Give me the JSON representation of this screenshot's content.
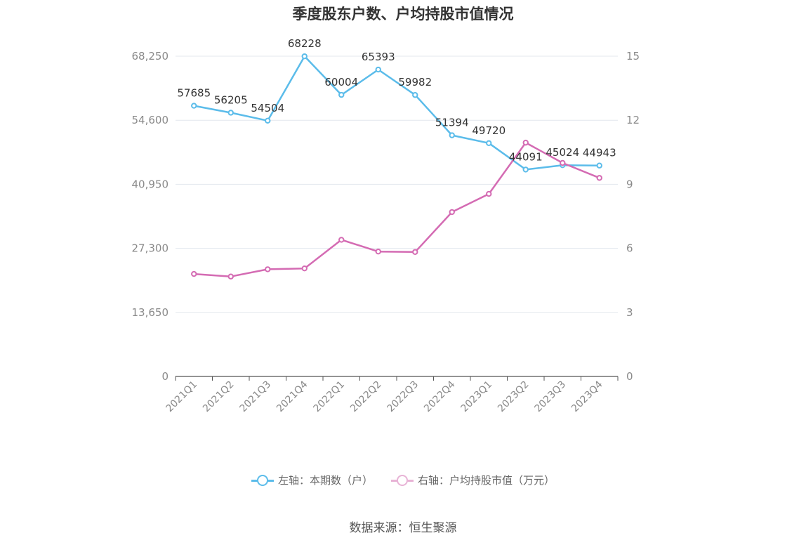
{
  "chart_data": {
    "type": "line",
    "title": "季度股东户数、户均持股市值情况",
    "categories": [
      "2021Q1",
      "2021Q2",
      "2021Q3",
      "2021Q4",
      "2022Q1",
      "2022Q2",
      "2022Q3",
      "2022Q4",
      "2023Q1",
      "2023Q2",
      "2023Q3",
      "2023Q4"
    ],
    "left_axis": {
      "ticks": [
        "0",
        "13,650",
        "27,300",
        "40,950",
        "54,600",
        "68,250"
      ],
      "min": 0,
      "max": 68250
    },
    "right_axis": {
      "ticks": [
        "0",
        "3",
        "6",
        "9",
        "12",
        "15"
      ],
      "min": 0,
      "max": 15
    },
    "series": [
      {
        "name": "左轴：本期数（户）",
        "axis": "left",
        "color": "#5bbcea",
        "values": [
          57685,
          56205,
          54504,
          68228,
          60004,
          65393,
          59982,
          51394,
          49720,
          44091,
          45024,
          44943
        ],
        "labels": [
          "57685",
          "56205",
          "54504",
          "68228",
          "60004",
          "65393",
          "59982",
          "51394",
          "49720",
          "44091",
          "45024",
          "44943"
        ]
      },
      {
        "name": "右轴：户均持股市值（万元）",
        "axis": "right",
        "color": "#d46bb3",
        "values": [
          4.8,
          4.68,
          5.02,
          5.06,
          6.4,
          5.85,
          5.83,
          7.7,
          8.55,
          10.95,
          10.0,
          9.3
        ]
      }
    ],
    "grid": true,
    "legend_position": "bottom"
  },
  "source": "数据来源：恒生聚源"
}
